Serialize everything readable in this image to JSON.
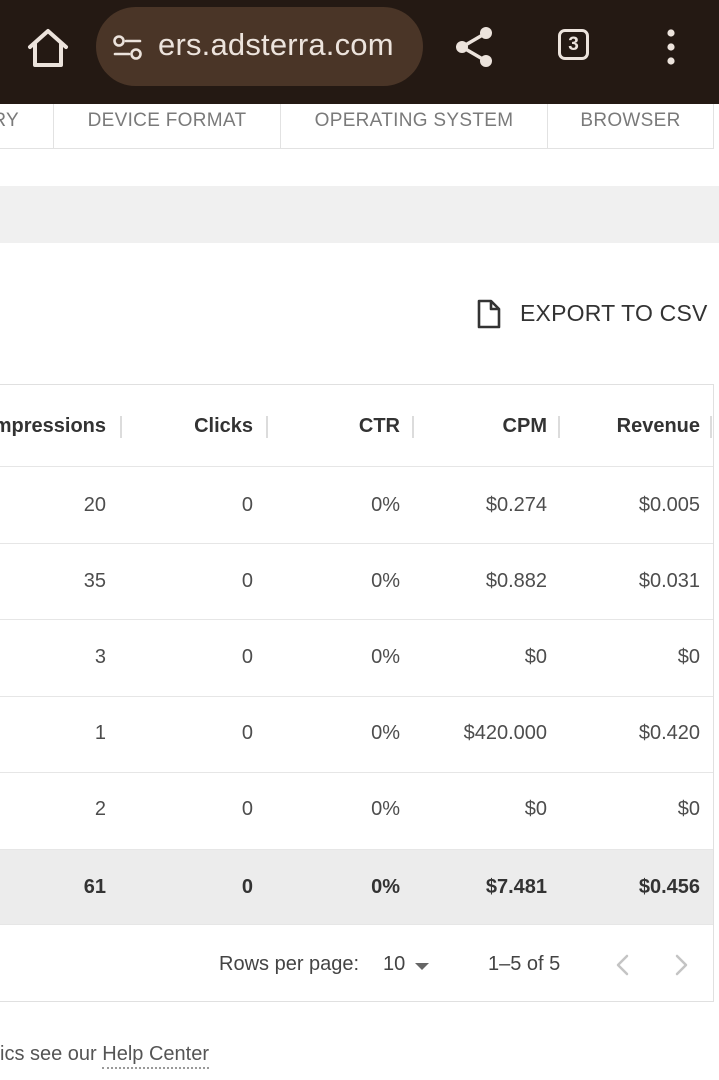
{
  "browser": {
    "url": "ers.adsterra.com",
    "tab_count": "3",
    "icons": [
      "home-icon",
      "site-settings-icon",
      "share-icon",
      "tab-switcher-icon",
      "more-vert-icon"
    ]
  },
  "filter_tabs": [
    "RY",
    "DEVICE FORMAT",
    "OPERATING SYSTEM",
    "BROWSER"
  ],
  "export": {
    "label": "EXPORT TO CSV",
    "icon": "file-icon"
  },
  "table": {
    "columns": [
      "mpressions",
      "Clicks",
      "CTR",
      "CPM",
      "Revenue"
    ],
    "rows": [
      [
        "20",
        "0",
        "0%",
        "$0.274",
        "$0.005"
      ],
      [
        "35",
        "0",
        "0%",
        "$0.882",
        "$0.031"
      ],
      [
        "3",
        "0",
        "0%",
        "$0",
        "$0"
      ],
      [
        "1",
        "0",
        "0%",
        "$420.000",
        "$0.420"
      ],
      [
        "2",
        "0",
        "0%",
        "$0",
        "$0"
      ]
    ],
    "total": [
      "61",
      "0",
      "0%",
      "$7.481",
      "$0.456"
    ]
  },
  "pagination": {
    "rows_per_page_label": "Rows per page:",
    "rows_per_page_value": "10",
    "range": "1–5 of 5"
  },
  "help": {
    "prefix": "ics see our ",
    "link": "Help Center"
  },
  "colors": {
    "topbar": "#241913",
    "url_pill": "#4a3527",
    "total_row": "#ececec"
  }
}
